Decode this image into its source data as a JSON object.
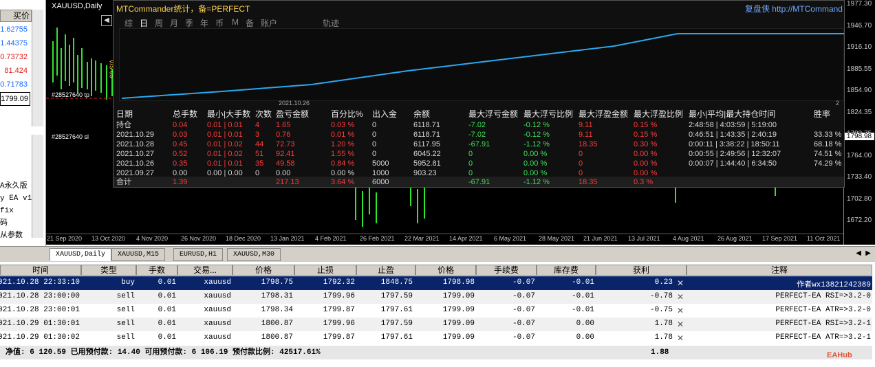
{
  "left_panel": {
    "header": "买价",
    "quotes": [
      "1.62755",
      "1.44375",
      "0.73732",
      "81.424",
      "0.71783",
      "1799.09"
    ],
    "quote_colors": [
      "#1a6bff",
      "#1a6bff",
      "#e02020",
      "#e02020",
      "#1a6bff",
      "#000000"
    ],
    "side_lines": [
      "A永久版",
      "y EA v1",
      "fix",
      "码",
      "从参数"
    ]
  },
  "chart": {
    "symbol_label": "XAUUSD,Daily",
    "price_ticks": [
      "1977.30",
      "1946.70",
      "1916.10",
      "1885.55",
      "1854.90",
      "1824.35",
      "1793.75",
      "1764.00",
      "1733.40",
      "1702.80",
      "1672.20"
    ],
    "current_price": "1798.98",
    "dates": [
      "21 Sep 2020",
      "13 Oct 2020",
      "4 Nov 2020",
      "26 Nov 2020",
      "18 Dec 2020",
      "13 Jan 2021",
      "4 Feb 2021",
      "26 Feb 2021",
      "22 Mar 2021",
      "14 Apr 2021",
      "6 May 2021",
      "28 May 2021",
      "21 Jun 2021",
      "13 Jul 2021",
      "4 Aug 2021",
      "26 Aug 2021",
      "17 Sep 2021",
      "11 Oct 2021"
    ],
    "left_labels": [
      "#28527640 tp",
      "#28527640 sl"
    ],
    "vol_label": "V/S 05"
  },
  "commander": {
    "title": "MTCommander统计，备=PERFECT",
    "site": "复盘侠 http://MTCommand",
    "tabs": [
      "综",
      "日",
      "周",
      "月",
      "季",
      "年",
      "币",
      "M",
      "备",
      "账户",
      "轨迹"
    ],
    "active_tab": "日",
    "mini_date": "2021.10.26",
    "mini_date_right": "2",
    "columns": [
      "日期",
      "总手数",
      "最小|大手数",
      "次数",
      "盈亏金额",
      "百分比%",
      "出入金",
      "余额",
      "最大浮亏金额",
      "最大浮亏比例",
      "最大浮盈金额",
      "最大浮盈比例",
      "最小|平均|最大持仓时间",
      "胜率"
    ],
    "rows": [
      [
        "持仓",
        "0.04",
        "0.01 | 0.01",
        "4",
        "1.65",
        "0.03 %",
        "0",
        "6118.71",
        "-7.02",
        "-0.12 %",
        "9.11",
        "0.15 %",
        "2:48:58 | 4:03:59 | 5:19:00",
        ""
      ],
      [
        "2021.10.29",
        "0.03",
        "0.01 | 0.01",
        "3",
        "0.76",
        "0.01 %",
        "0",
        "6118.71",
        "-7.02",
        "-0.12 %",
        "9.11",
        "0.15 %",
        "0:46:51 | 1:43:35 | 2:40:19",
        "33.33 %"
      ],
      [
        "2021.10.28",
        "0.45",
        "0.01 | 0.02",
        "44",
        "72.73",
        "1.20 %",
        "0",
        "6117.95",
        "-67.91",
        "-1.12 %",
        "18.35",
        "0.30 %",
        "0:00:11 | 3:38:22 | 18:50:11",
        "68.18 %"
      ],
      [
        "2021.10.27",
        "0.52",
        "0.01 | 0.02",
        "51",
        "92.41",
        "1.55 %",
        "0",
        "6045.22",
        "0",
        "0.00 %",
        "0",
        "0.00 %",
        "0:00:55 | 2:49:56 | 12:32:07",
        "74.51 %"
      ],
      [
        "2021.10.26",
        "0.35",
        "0.01 | 0.01",
        "35",
        "49.58",
        "0.84 %",
        "5000",
        "5952.81",
        "0",
        "0.00 %",
        "0",
        "0.00 %",
        "0:00:07 | 1:44:40 | 6:34:50",
        "74.29 %"
      ],
      [
        "2021.09.27",
        "0.00",
        "0.00 | 0.00",
        "0",
        "0.00",
        "0.00 %",
        "1000",
        "903.23",
        "0",
        "0.00 %",
        "0",
        "0.00 %",
        "",
        ""
      ]
    ],
    "total": [
      "合计",
      "1.39",
      "",
      "",
      "217.13",
      "3.64 %",
      "6000",
      "",
      "-67.91",
      "-1.12 %",
      "18.35",
      "0.3 %",
      "",
      ""
    ]
  },
  "tabstrip": [
    "XAUUSD,Daily",
    "XAUUSD,M15",
    "EURUSD,H1",
    "XAUUSD,M30"
  ],
  "orders": {
    "columns": [
      "时间",
      "类型",
      "手数",
      "交易...",
      "价格",
      "止损",
      "止盈",
      "价格",
      "手续费",
      "库存费",
      "获利",
      "注释"
    ],
    "rows": [
      [
        "2021.10.28 22:33:10",
        "buy",
        "0.01",
        "xauusd",
        "1798.75",
        "1792.32",
        "1848.75",
        "1798.98",
        "-0.07",
        "-0.01",
        "0.23",
        "作者wx13821242389"
      ],
      [
        "2021.10.28 23:00:00",
        "sell",
        "0.01",
        "xauusd",
        "1798.31",
        "1799.96",
        "1797.59",
        "1799.09",
        "-0.07",
        "-0.01",
        "-0.78",
        "PERFECT-EA RSI=>3.2-0"
      ],
      [
        "2021.10.28 23:00:01",
        "sell",
        "0.01",
        "xauusd",
        "1798.34",
        "1799.87",
        "1797.61",
        "1799.09",
        "-0.07",
        "-0.01",
        "-0.75",
        "PERFECT-EA ATR=>3.2-0"
      ],
      [
        "2021.10.29 01:30:01",
        "sell",
        "0.01",
        "xauusd",
        "1800.87",
        "1799.96",
        "1797.59",
        "1799.09",
        "-0.07",
        "0.00",
        "1.78",
        "PERFECT-EA RSI=>3.2-1"
      ],
      [
        "2021.10.29 01:30:02",
        "sell",
        "0.01",
        "xauusd",
        "1800.87",
        "1799.87",
        "1797.61",
        "1799.09",
        "-0.07",
        "0.00",
        "1.78",
        "PERFECT-EA ATR=>3.2-1"
      ]
    ],
    "summary": "净值: 6 120.59  已用预付款: 14.40  可用预付款: 6 106.19  预付款比例: 42517.61%",
    "summary_total": "1.88",
    "logo": "EAHub"
  }
}
